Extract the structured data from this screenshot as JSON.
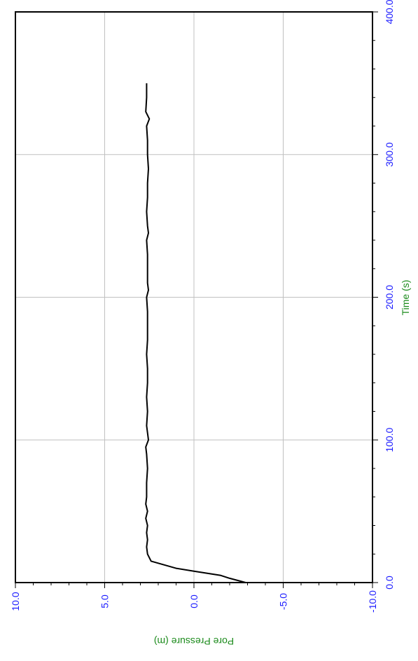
{
  "chart_data": {
    "type": "line",
    "orientation": "rotated-90",
    "xlabel": "Time (s)",
    "ylabel": "Pore Pressure (m)",
    "xlim": [
      0,
      400
    ],
    "ylim": [
      -10,
      10
    ],
    "x_ticks": [
      "0.0",
      "100.0",
      "200.0",
      "300.0",
      "400.0"
    ],
    "y_ticks": [
      "10.0",
      "5.0",
      "0.0",
      "-5.0",
      "-10.0"
    ],
    "grid": true,
    "colors": {
      "line": "#000000",
      "tick_labels": "#1a1aff",
      "axis_titles": "#1a8a1a",
      "grid": "#c0c0c0"
    },
    "series": [
      {
        "x": [
          0,
          3,
          5,
          8,
          10,
          15,
          20,
          25,
          30,
          35,
          40,
          45,
          50,
          55,
          60,
          70,
          80,
          90,
          95,
          100,
          110,
          120,
          130,
          140,
          150,
          160,
          170,
          180,
          190,
          200,
          205,
          210,
          220,
          230,
          240,
          245,
          250,
          260,
          270,
          280,
          290,
          300,
          310,
          320,
          325,
          330,
          340,
          350
        ],
        "y": [
          -2.9,
          -2.0,
          -1.5,
          0.0,
          1.0,
          2.4,
          2.6,
          2.65,
          2.6,
          2.65,
          2.6,
          2.7,
          2.6,
          2.7,
          2.65,
          2.65,
          2.6,
          2.65,
          2.7,
          2.55,
          2.65,
          2.6,
          2.65,
          2.6,
          2.6,
          2.65,
          2.6,
          2.6,
          2.6,
          2.65,
          2.55,
          2.6,
          2.6,
          2.6,
          2.65,
          2.55,
          2.6,
          2.65,
          2.6,
          2.6,
          2.55,
          2.6,
          2.6,
          2.65,
          2.5,
          2.7,
          2.65,
          2.65
        ]
      }
    ]
  }
}
